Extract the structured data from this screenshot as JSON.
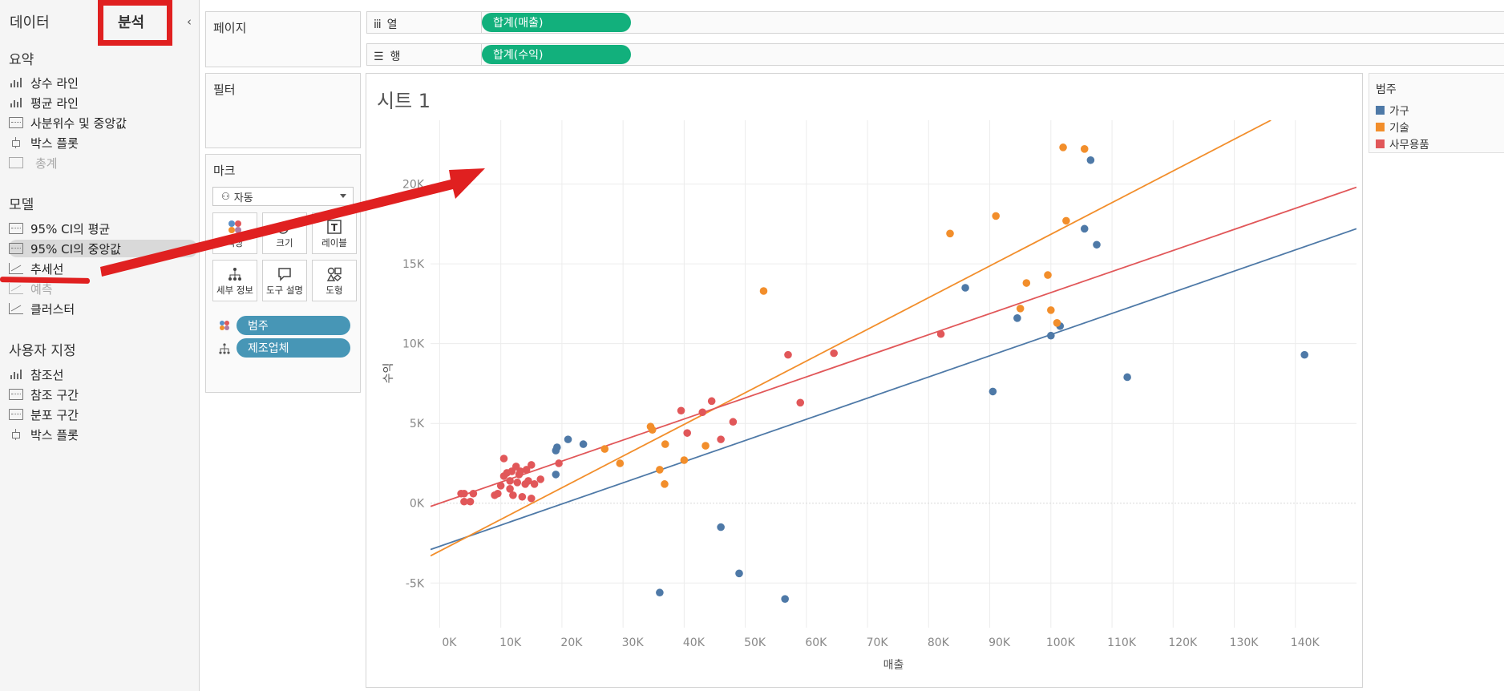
{
  "tabs": {
    "data": "데이터",
    "analysis": "분석"
  },
  "panel": {
    "summary_title": "요약",
    "summary_items": [
      "상수 라인",
      "평균 라인",
      "사분위수 및 중앙값",
      "박스 플롯",
      "총계"
    ],
    "model_title": "모델",
    "model_items": [
      "95% CI의 평균",
      "95% CI의 중앙값",
      "추세선",
      "예측",
      "클러스터"
    ],
    "custom_title": "사용자 지정",
    "custom_items": [
      "참조선",
      "참조 구간",
      "분포 구간",
      "박스 플롯"
    ]
  },
  "shelves": {
    "pages": "페이지",
    "filters": "필터",
    "marks": "마크",
    "marks_type": "자동",
    "mark_buttons": [
      "색상",
      "크기",
      "레이블",
      "세부 정보",
      "도구 설명",
      "도형"
    ],
    "mark_fields": [
      "범주",
      "제조업체"
    ],
    "columns_label": "열",
    "rows_label": "행",
    "columns_pill": "합계(매출)",
    "rows_pill": "합계(수익)"
  },
  "sheet_title": "시트 1",
  "legend": {
    "title": "범주",
    "items": [
      {
        "label": "가구",
        "color": "#4e79a7"
      },
      {
        "label": "기술",
        "color": "#f28e2b"
      },
      {
        "label": "사무용품",
        "color": "#e15759"
      }
    ]
  },
  "chart_data": {
    "type": "scatter",
    "xlabel": "매출",
    "ylabel": "수익",
    "xlim": [
      -1500,
      150000
    ],
    "ylim": [
      -7800,
      24000
    ],
    "x_ticks": [
      "0K",
      "10K",
      "20K",
      "30K",
      "40K",
      "50K",
      "60K",
      "70K",
      "80K",
      "90K",
      "100K",
      "110K",
      "120K",
      "130K",
      "140K"
    ],
    "y_ticks": [
      "-5K",
      "0K",
      "5K",
      "10K",
      "15K",
      "20K"
    ],
    "grid": true,
    "legend": "right",
    "trendlines": true,
    "series": [
      {
        "name": "가구",
        "color": "#4e79a7",
        "trend": [
          [
            -1500,
            -2900
          ],
          [
            150000,
            17200
          ]
        ],
        "points": [
          [
            19000,
            3300
          ],
          [
            19200,
            3500
          ],
          [
            21000,
            4000
          ],
          [
            23500,
            3700
          ],
          [
            19000,
            1800
          ],
          [
            36000,
            -5600
          ],
          [
            46000,
            -1500
          ],
          [
            49000,
            -4400
          ],
          [
            56500,
            -6000
          ],
          [
            86000,
            13500
          ],
          [
            90500,
            7000
          ],
          [
            94500,
            11600
          ],
          [
            100000,
            10500
          ],
          [
            101500,
            11100
          ],
          [
            105500,
            17200
          ],
          [
            106500,
            21500
          ],
          [
            107500,
            16200
          ],
          [
            112500,
            7900
          ],
          [
            141500,
            9300
          ]
        ]
      },
      {
        "name": "기술",
        "color": "#f28e2b",
        "trend": [
          [
            -1500,
            -3300
          ],
          [
            136000,
            24000
          ]
        ],
        "points": [
          [
            27000,
            3400
          ],
          [
            29500,
            2500
          ],
          [
            34500,
            4800
          ],
          [
            34800,
            4600
          ],
          [
            36000,
            2100
          ],
          [
            36800,
            1200
          ],
          [
            36900,
            3700
          ],
          [
            40000,
            2700
          ],
          [
            43500,
            3600
          ],
          [
            53000,
            13300
          ],
          [
            83500,
            16900
          ],
          [
            91000,
            18000
          ],
          [
            95000,
            12200
          ],
          [
            96000,
            13800
          ],
          [
            99500,
            14300
          ],
          [
            100000,
            12100
          ],
          [
            101000,
            11300
          ],
          [
            102500,
            17700
          ],
          [
            102000,
            22300
          ],
          [
            105500,
            22200
          ]
        ]
      },
      {
        "name": "사무용품",
        "color": "#e15759",
        "trend": [
          [
            -1500,
            -200
          ],
          [
            150000,
            19800
          ]
        ],
        "points": [
          [
            3500,
            600
          ],
          [
            4000,
            600
          ],
          [
            5000,
            100
          ],
          [
            5500,
            600
          ],
          [
            4000,
            100
          ],
          [
            9000,
            500
          ],
          [
            9500,
            600
          ],
          [
            10000,
            1100
          ],
          [
            10500,
            1700
          ],
          [
            10500,
            2800
          ],
          [
            11000,
            1900
          ],
          [
            11500,
            1400
          ],
          [
            11500,
            900
          ],
          [
            11800,
            2000
          ],
          [
            12000,
            500
          ],
          [
            12500,
            2300
          ],
          [
            12700,
            1300
          ],
          [
            13000,
            1800
          ],
          [
            13200,
            2000
          ],
          [
            13500,
            400
          ],
          [
            14000,
            1200
          ],
          [
            14200,
            2100
          ],
          [
            14500,
            1400
          ],
          [
            15000,
            300
          ],
          [
            15000,
            2400
          ],
          [
            15500,
            1200
          ],
          [
            16500,
            1500
          ],
          [
            19500,
            2500
          ],
          [
            39500,
            5800
          ],
          [
            40500,
            4400
          ],
          [
            43000,
            5700
          ],
          [
            44500,
            6400
          ],
          [
            46000,
            4000
          ],
          [
            48000,
            5100
          ],
          [
            57000,
            9300
          ],
          [
            59000,
            6300
          ],
          [
            64500,
            9400
          ],
          [
            82000,
            10600
          ]
        ]
      }
    ]
  }
}
